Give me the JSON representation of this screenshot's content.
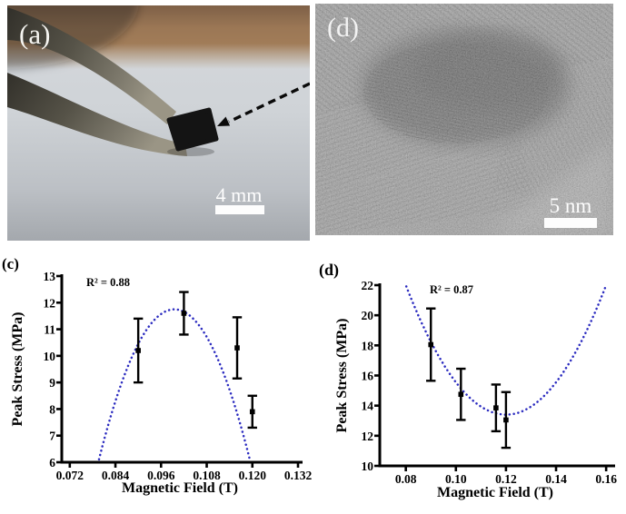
{
  "figure_labels": {
    "photo": {
      "label": "(a)",
      "scalebar": "4 mm"
    },
    "tem": {
      "label": "(d)",
      "scalebar": "5 nm"
    }
  },
  "colors": {
    "fit_blue": "#2c2cc0",
    "axis_black": "#000000",
    "photo_label_white": "#f5f4f0",
    "tem_base_gray": "#979797",
    "photo_bg_gray": "#cfd3d7",
    "photo_top_brown": "#9b7755",
    "cube_black": "#141414"
  },
  "chart_data": [
    {
      "type": "scatter",
      "panel_label": "(c)",
      "annotation": "R² = 0.88",
      "title": "",
      "xlabel": "Magnetic Field (T)",
      "ylabel": "Peak Stress (MPa)",
      "xlim": [
        0.0699,
        0.132
      ],
      "ylim": [
        6,
        13
      ],
      "grid": false,
      "legend": "none",
      "xticks": [
        {
          "v": 0.072,
          "label": "0.072"
        },
        {
          "v": 0.084,
          "label": "0.084"
        },
        {
          "v": 0.096,
          "label": "0.096"
        },
        {
          "v": 0.108,
          "label": "0.108"
        },
        {
          "v": 0.12,
          "label": "0.120"
        },
        {
          "v": 0.132,
          "label": "0.132"
        }
      ],
      "yticks": [
        {
          "v": 6,
          "label": "6"
        },
        {
          "v": 7,
          "label": "7"
        },
        {
          "v": 8,
          "label": "8"
        },
        {
          "v": 9,
          "label": "9"
        },
        {
          "v": 10,
          "label": "10"
        },
        {
          "v": 11,
          "label": "11"
        },
        {
          "v": 12,
          "label": "12"
        },
        {
          "v": 13,
          "label": "13"
        }
      ],
      "points": [
        {
          "x": 0.09,
          "y": 10.2,
          "err": 1.2
        },
        {
          "x": 0.102,
          "y": 11.6,
          "err": 0.8
        },
        {
          "x": 0.116,
          "y": 10.3,
          "err": 1.15
        },
        {
          "x": 0.12,
          "y": 7.9,
          "err": 0.6
        }
      ],
      "fit": {
        "shape": "parabola",
        "vertex_x": 0.0995,
        "vertex_y": 11.75,
        "a": -14375
      },
      "marker_color": "#000000",
      "fit_color": "#2c2cc0"
    },
    {
      "type": "scatter",
      "panel_label": "(d)",
      "annotation": "R² = 0.87",
      "title": "",
      "xlabel": "Magnetic Field (T)",
      "ylabel": "Peak Stress (MPa)",
      "xlim": [
        0.0696,
        0.1614
      ],
      "ylim": [
        10,
        22
      ],
      "grid": false,
      "legend": "none",
      "xticks": [
        {
          "v": 0.08,
          "label": "0.08"
        },
        {
          "v": 0.1,
          "label": "0.10"
        },
        {
          "v": 0.12,
          "label": "0.12"
        },
        {
          "v": 0.14,
          "label": "0.14"
        },
        {
          "v": 0.16,
          "label": "0.16"
        }
      ],
      "yticks": [
        {
          "v": 10,
          "label": "10"
        },
        {
          "v": 12,
          "label": "12"
        },
        {
          "v": 14,
          "label": "14"
        },
        {
          "v": 16,
          "label": "16"
        },
        {
          "v": 18,
          "label": "18"
        },
        {
          "v": 20,
          "label": "20"
        },
        {
          "v": 22,
          "label": "22"
        }
      ],
      "points": [
        {
          "x": 0.09,
          "y": 18.05,
          "err": 2.4
        },
        {
          "x": 0.102,
          "y": 14.75,
          "err": 1.7
        },
        {
          "x": 0.116,
          "y": 13.85,
          "err": 1.55
        },
        {
          "x": 0.12,
          "y": 13.05,
          "err": 1.85
        }
      ],
      "fit": {
        "shape": "parabola",
        "vertex_x": 0.12,
        "vertex_y": 13.4,
        "a": 5375
      },
      "marker_color": "#000000",
      "fit_color": "#2c2cc0"
    }
  ]
}
